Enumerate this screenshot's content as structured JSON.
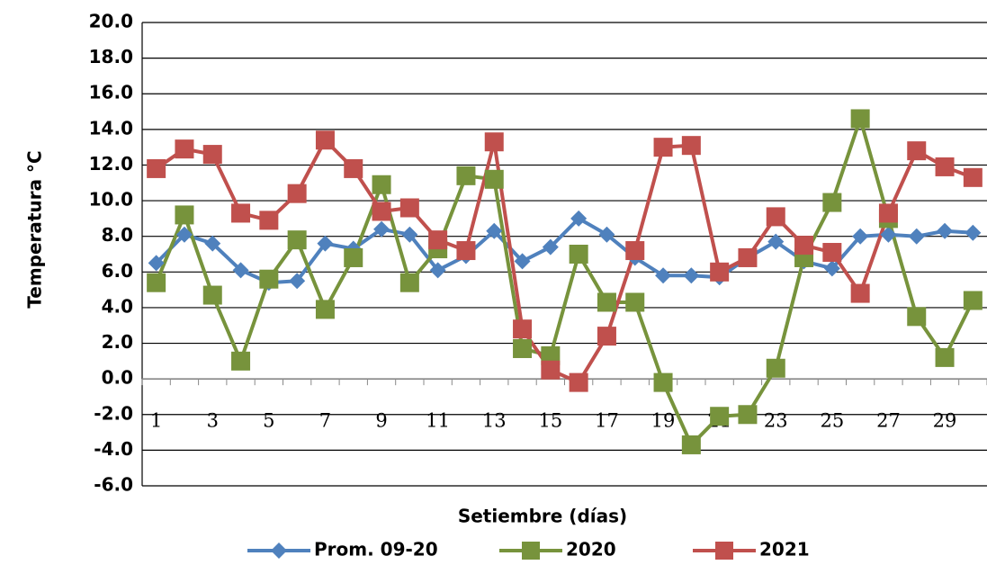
{
  "chart_data": {
    "type": "line",
    "y_label": "Temperatura °C",
    "x_label": "Setiembre (días)",
    "categories": [
      "1",
      null,
      "3",
      null,
      "5",
      null,
      "7",
      null,
      "9",
      null,
      "11",
      null,
      "13",
      null,
      "15",
      null,
      "17",
      null,
      "19",
      null,
      "21",
      null,
      "23",
      null,
      "25",
      null,
      "27",
      null,
      "29",
      null
    ],
    "series": [
      {
        "name": "Prom. 09-20",
        "color": "#4f81bd",
        "marker": "diamond",
        "values": [
          6.5,
          8.1,
          7.6,
          6.1,
          5.4,
          5.5,
          7.6,
          7.3,
          8.4,
          8.1,
          6.1,
          6.9,
          8.3,
          6.6,
          7.4,
          9.0,
          8.1,
          6.8,
          5.8,
          5.8,
          5.7,
          6.8,
          7.7,
          6.6,
          6.2,
          8.0,
          8.1,
          8.0,
          8.3,
          8.2
        ]
      },
      {
        "name": "2020",
        "color": "#77933c",
        "marker": "square",
        "values": [
          5.4,
          9.2,
          4.7,
          1.0,
          5.6,
          7.8,
          3.9,
          6.8,
          10.9,
          5.4,
          7.3,
          11.4,
          11.2,
          1.7,
          1.3,
          7.0,
          4.3,
          4.3,
          -0.2,
          -3.7,
          -2.1,
          -2.0,
          0.6,
          6.8,
          9.9,
          14.6,
          9.0,
          3.5,
          1.2,
          4.4
        ]
      },
      {
        "name": "2021",
        "color": "#c0504d",
        "marker": "square",
        "values": [
          11.8,
          12.9,
          12.6,
          9.3,
          8.9,
          10.4,
          13.4,
          11.8,
          9.4,
          9.6,
          7.8,
          7.2,
          13.3,
          2.8,
          0.5,
          -0.2,
          2.4,
          7.2,
          13.0,
          13.1,
          6.0,
          6.8,
          9.1,
          7.5,
          7.1,
          4.8,
          9.3,
          12.8,
          11.9,
          11.3
        ]
      }
    ],
    "ylim": [
      -6,
      20
    ],
    "yticks": [
      {
        "value": -6,
        "label": "-6.0"
      },
      {
        "value": -4,
        "label": "-4.0"
      },
      {
        "value": -2,
        "label": "-2.0"
      },
      {
        "value": 0,
        "label": "0.0"
      },
      {
        "value": 2,
        "label": "2.0"
      },
      {
        "value": 4,
        "label": "4.0"
      },
      {
        "value": 6,
        "label": "6.0"
      },
      {
        "value": 8,
        "label": "8.0"
      },
      {
        "value": 10,
        "label": "10.0"
      },
      {
        "value": 12,
        "label": "12.0"
      },
      {
        "value": 14,
        "label": "14.0"
      },
      {
        "value": 16,
        "label": "16.0"
      },
      {
        "value": 18,
        "label": "18.0"
      },
      {
        "value": 20,
        "label": "20.0"
      }
    ],
    "grid": true,
    "legend": "bottom"
  }
}
